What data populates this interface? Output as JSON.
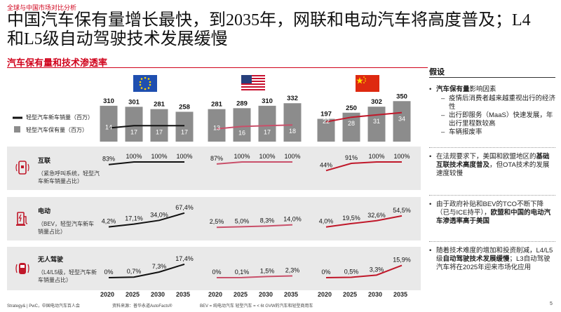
{
  "kicker": "全球与中国市场对比分析",
  "title": "中国汽车保有量增长最快，到2035年，网联和电动汽车将高度普及；L4和L5级自动驾驶技术发展缓慢",
  "subtitle": "汽车保有量和技术渗透率",
  "legend": {
    "line": "轻型汽车新车销量（百万）",
    "bar": "轻型汽车保有量（百万）"
  },
  "rows": [
    {
      "title": "互联",
      "desc": "（紧急呼叫系统，轻型汽车新车销量占比）"
    },
    {
      "title": "电动",
      "desc": "（BEV，轻型汽车新车销量占比）"
    },
    {
      "title": "无人驾驶",
      "desc": "（L4/L5级，轻型汽车新车销量占比）"
    }
  ],
  "chart_data": {
    "type": "bar",
    "title": "汽车保有量和技术渗透率",
    "categories": [
      "2020",
      "2025",
      "2030",
      "2035"
    ],
    "regions": [
      {
        "region": "欧盟",
        "flag": "eu-flag-icon",
        "fleet": [
          310,
          301,
          281,
          258
        ],
        "sales": [
          14,
          17,
          17,
          17
        ],
        "connected_labels": [
          "83%",
          "100%",
          "100%",
          "100%"
        ],
        "connected": [
          83,
          100,
          100,
          100
        ],
        "electric_labels": [
          "4,2%",
          "17,1%",
          "34,0%",
          "67,4%"
        ],
        "electric": [
          4.2,
          17.1,
          34.0,
          67.4
        ],
        "autonomous_labels": [
          "0%",
          "0,7%",
          "7,3%",
          "17,4%"
        ],
        "autonomous": [
          0,
          0.7,
          7.3,
          17.4
        ]
      },
      {
        "region": "美国",
        "flag": "us-flag-icon",
        "fleet": [
          281,
          289,
          310,
          332
        ],
        "sales": [
          13,
          16,
          17,
          18
        ],
        "connected_labels": [
          "87%",
          "100%",
          "100%",
          "100%"
        ],
        "connected": [
          87,
          100,
          100,
          100
        ],
        "electric_labels": [
          "2,5%",
          "5,0%",
          "8,3%",
          "14,0%"
        ],
        "electric": [
          2.5,
          5.0,
          8.3,
          14.0
        ],
        "autonomous_labels": [
          "0%",
          "0,1%",
          "1,5%",
          "2,3%"
        ],
        "autonomous": [
          0,
          0.1,
          1.5,
          2.3
        ]
      },
      {
        "region": "中国",
        "flag": "cn-flag-icon",
        "fleet": [
          197,
          250,
          302,
          350
        ],
        "sales": [
          22,
          28,
          31,
          34
        ],
        "connected_labels": [
          "44%",
          "91%",
          "100%",
          "100%"
        ],
        "connected": [
          44,
          91,
          100,
          100
        ],
        "electric_labels": [
          "4,0%",
          "19,5%",
          "32,6%",
          "54,5%"
        ],
        "electric": [
          4.0,
          19.5,
          32.6,
          54.5
        ],
        "autonomous_labels": [
          "0%",
          "0,5%",
          "3,3%",
          "15,9%"
        ],
        "autonomous": [
          0,
          0.5,
          3.3,
          15.9
        ]
      }
    ],
    "colors": {
      "bar": "#8c8c8c",
      "eu_line": "#111111",
      "us_line": "#c9506a",
      "cn_line": "#c0182a"
    }
  },
  "sidebar": {
    "heading": "假设",
    "b1": {
      "pre": "汽车保有量",
      "rest": "影响因素"
    },
    "b1_subs": [
      "疫情后消费者越来越重视出行的经济性",
      "出行即服务（MaaS）快速发展，年出行里程数较高",
      "车辆报废率"
    ],
    "b2": {
      "pre": "在法规要求下，美国和欧盟地区的",
      "bold": "基础互联技术高度普及",
      "post": "，但OTA技术的发展速度较慢"
    },
    "b3": {
      "pre": "由于政府补贴和BEV的TCO不断下降（已与ICE持平），",
      "bold": "欧盟和中国的电动汽车渗透率高于美国"
    },
    "b4": {
      "pre": "随着技术难度的增加和投资削减，L4/L5级",
      "bold": "自动驾驶技术发展缓慢",
      "post": "；L3自动驾驶汽车将在2025年迎来市场化应用"
    }
  },
  "footer": {
    "brand": "Strategy& | PwC，中国电动汽车百人会",
    "source": "资料来源：普华永道AutoFacts®",
    "note": "BEV = 纯电动汽车    轻型汽车 = < 6t GVW的汽车和轻型商用车",
    "page": "5"
  }
}
